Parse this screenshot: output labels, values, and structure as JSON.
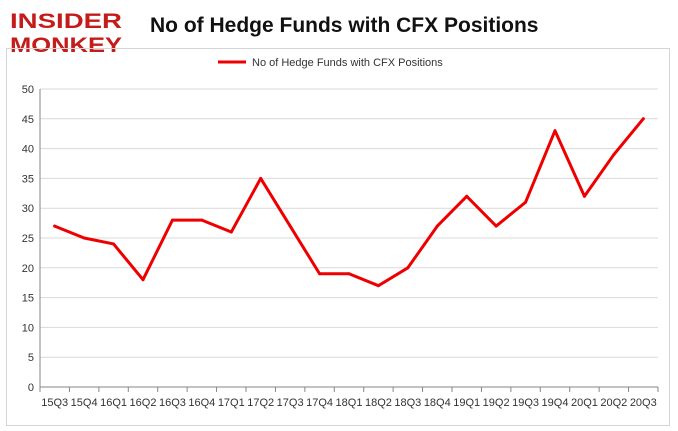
{
  "header": {
    "logo_line1": "INSIDER",
    "logo_line2": "MONKEY",
    "title": "No of Hedge Funds with CFX Positions"
  },
  "colors": {
    "series": "#ee0000",
    "grid": "#d9d9d9",
    "axis": "#868686",
    "logo": "#c41b1b"
  },
  "chart_data": {
    "type": "line",
    "title": "No of Hedge Funds with CFX Positions",
    "xlabel": "",
    "ylabel": "",
    "ylim": [
      0,
      50
    ],
    "yticks": [
      0,
      5,
      10,
      15,
      20,
      25,
      30,
      35,
      40,
      45,
      50
    ],
    "grid": true,
    "legend_position": "top",
    "categories": [
      "15Q3",
      "15Q4",
      "16Q1",
      "16Q2",
      "16Q3",
      "16Q4",
      "17Q1",
      "17Q2",
      "17Q3",
      "17Q4",
      "18Q1",
      "18Q2",
      "18Q3",
      "18Q4",
      "19Q1",
      "19Q2",
      "19Q3",
      "19Q4",
      "20Q1",
      "20Q2",
      "20Q3"
    ],
    "series": [
      {
        "name": "No of Hedge Funds with CFX Positions",
        "values": [
          27,
          25,
          24,
          18,
          28,
          28,
          26,
          35,
          27,
          19,
          19,
          17,
          20,
          27,
          32,
          27,
          31,
          43,
          32,
          39,
          45
        ]
      }
    ]
  }
}
